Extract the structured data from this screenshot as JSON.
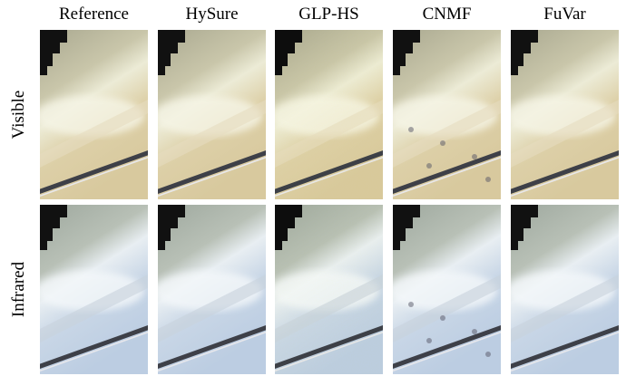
{
  "columns": [
    "Reference",
    "HySure",
    "GLP-HS",
    "CNMF",
    "FuVar"
  ],
  "rows": [
    "Visible",
    "Infrared"
  ]
}
